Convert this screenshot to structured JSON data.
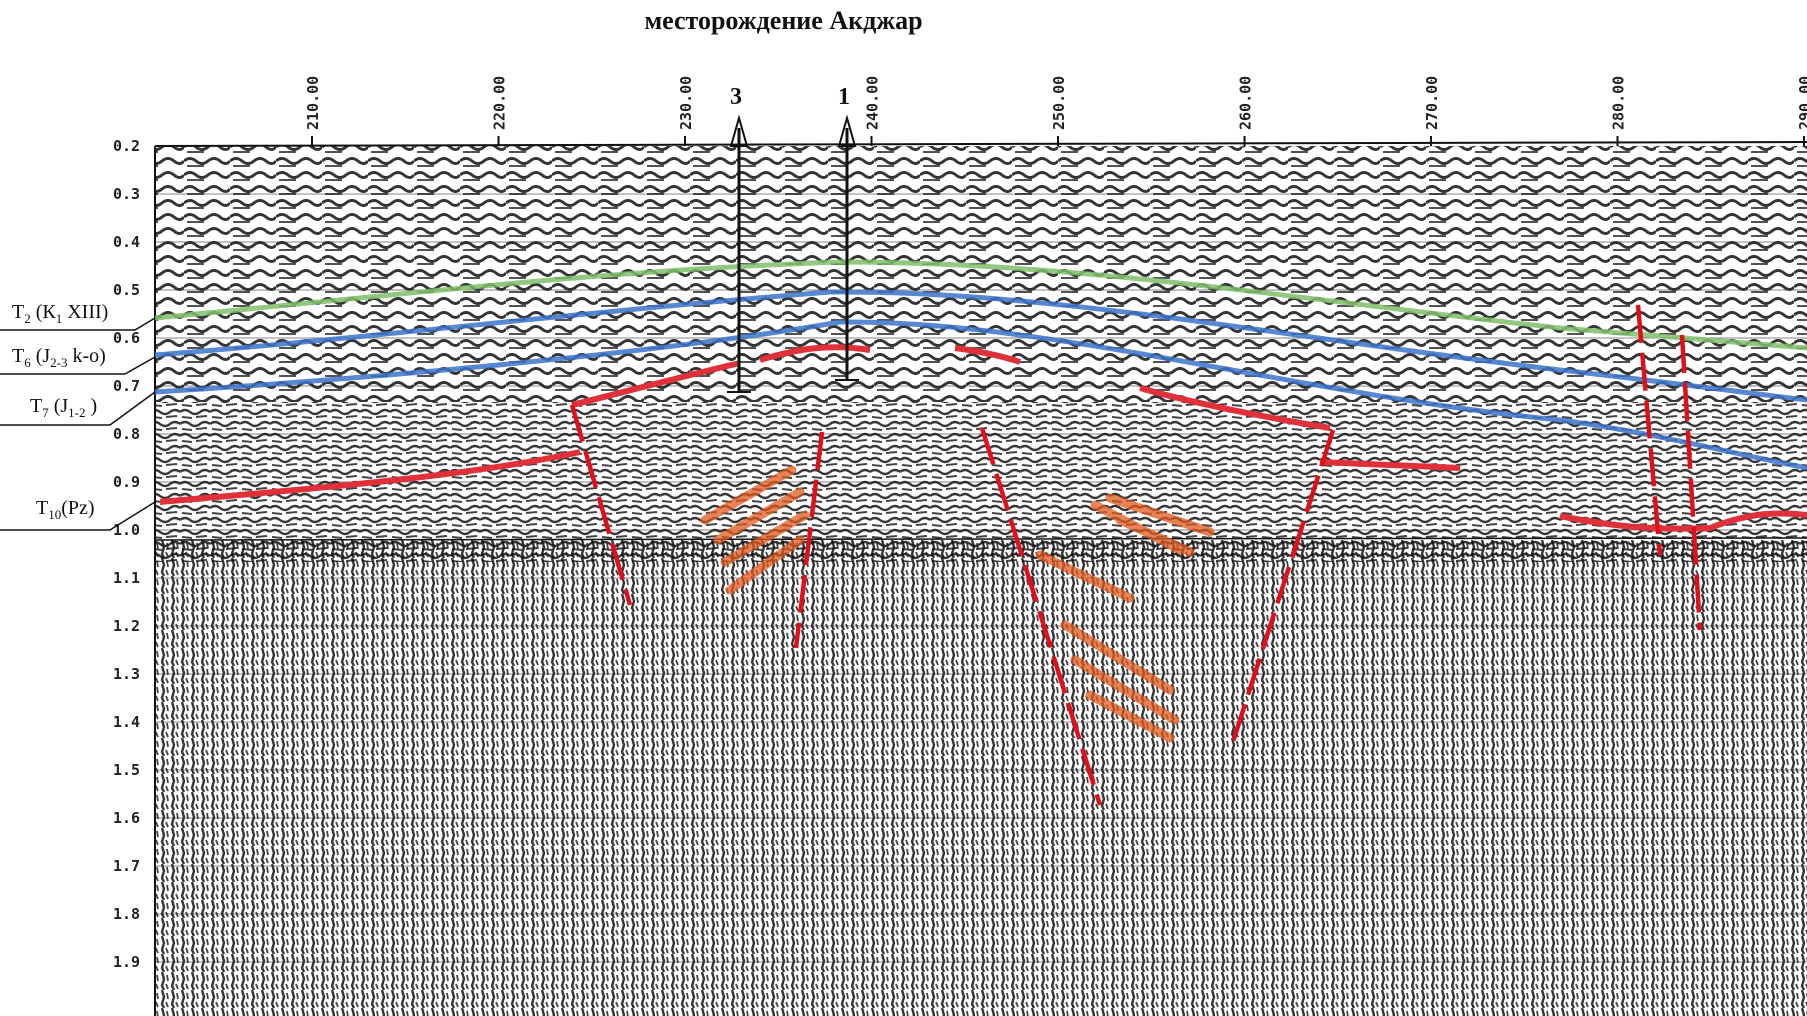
{
  "title": "месторождение Акджар",
  "time_axis": {
    "ticks": [
      "0.2",
      "0.3",
      "0.4",
      "0.5",
      "0.6",
      "0.7",
      "0.8",
      "0.9",
      "1.0",
      "1.1",
      "1.2",
      "1.3",
      "1.4",
      "1.5",
      "1.6",
      "1.7",
      "1.8",
      "1.9"
    ]
  },
  "trace_axis": {
    "ticks": [
      "210.00",
      "220.00",
      "230.00",
      "240.00",
      "250.00",
      "260.00",
      "270.00",
      "280.00",
      "290.00"
    ]
  },
  "wells": [
    {
      "label": "3"
    },
    {
      "label": "1"
    }
  ],
  "horizons": [
    {
      "main": "T",
      "sub": "2",
      "rest": " (К",
      "sub2": "1",
      "tail": " XIII)",
      "color": "#7fbf6a"
    },
    {
      "main": "T",
      "sub": "6",
      "rest": " (J",
      "sub2": "2-3",
      "tail": " k-o)",
      "color": "#3a73c9"
    },
    {
      "main": "T",
      "sub": "7",
      "rest": " (J",
      "sub2": "1-2",
      "tail": " )",
      "color": "#3a73c9"
    },
    {
      "main": "T",
      "sub": "10",
      "rest": "(Pz)",
      "sub2": "",
      "tail": "",
      "color": "#e0303a"
    }
  ],
  "colors": {
    "fault": "#e0101a",
    "reflector_orange": "#e05a20",
    "horizon_green": "#7fbf6a",
    "horizon_blue": "#3a73c9",
    "horizon_red": "#e0303a"
  }
}
